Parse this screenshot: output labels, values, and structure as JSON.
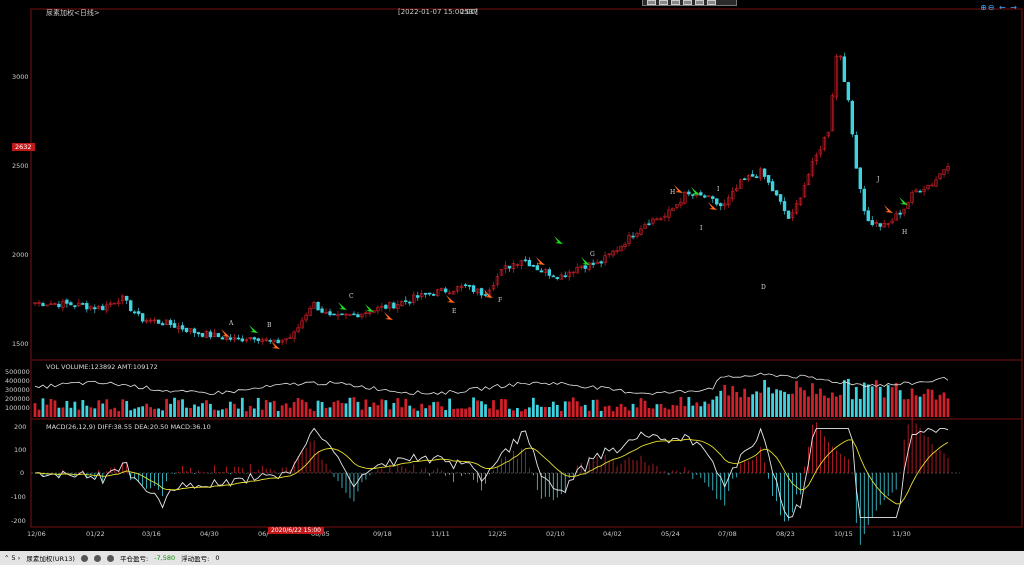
{
  "window": {
    "title": "尿素加权<日线>",
    "cursor_time": "[2022-01-07 15:00:00]",
    "cursor_value": "2537"
  },
  "toolbar": {
    "buttons": 6
  },
  "price_axis": {
    "labels": [
      "3000",
      "2500",
      "2000",
      "1500"
    ],
    "current_price": "2632"
  },
  "volume_panel": {
    "label": "VOL  VOLUME:123892 AMT:109172",
    "axis": [
      "500000",
      "400000",
      "300000",
      "200000",
      "100000"
    ]
  },
  "macd_panel": {
    "label": "MACD(26,12,9)   DIFF:38.55  DEA:20.50  MACD:36.10",
    "axis": [
      "200",
      "100",
      "0",
      "-100",
      "-200"
    ]
  },
  "date_axis": [
    "12/06",
    "01/22",
    "03/16",
    "04/30",
    "06/",
    "08/05",
    "09/18",
    "11/11",
    "12/25",
    "02/10",
    "04/02",
    "05/24",
    "07/08",
    "08/23",
    "10/15",
    "11/30"
  ],
  "date_highlight": "2020/6/22  15:00",
  "markers": [
    "A",
    "B",
    "C",
    "D",
    "E",
    "F",
    "G",
    "H",
    "I",
    "J",
    "H",
    "I"
  ],
  "status_bar": {
    "contract": "尿素加权(UR13)",
    "avg_profit_label": "平仓盈亏:",
    "avg_profit_value": "-7,580",
    "float_label": "浮动盈亏:",
    "float_value": "0"
  },
  "colors": {
    "up": "#d0202a",
    "down": "#3fd3e0",
    "ma": "#e8e8e8",
    "dea": "#e8e030",
    "green": "#1ee01e",
    "orange": "#ff6a1e"
  },
  "chart_data": {
    "type": "candlestick",
    "ylim": [
      1350,
      3200
    ],
    "close_anchors": [
      [
        0,
        1740
      ],
      [
        40,
        1730
      ],
      [
        70,
        1710
      ],
      [
        90,
        1770
      ],
      [
        110,
        1650
      ],
      [
        140,
        1620
      ],
      [
        170,
        1570
      ],
      [
        210,
        1530
      ],
      [
        230,
        1550
      ],
      [
        250,
        1510
      ],
      [
        270,
        1550
      ],
      [
        290,
        1740
      ],
      [
        310,
        1650
      ],
      [
        340,
        1680
      ],
      [
        370,
        1720
      ],
      [
        400,
        1770
      ],
      [
        420,
        1800
      ],
      [
        450,
        1830
      ],
      [
        470,
        1790
      ],
      [
        490,
        1930
      ],
      [
        510,
        1990
      ],
      [
        530,
        1920
      ],
      [
        550,
        1890
      ],
      [
        570,
        1950
      ],
      [
        590,
        1960
      ],
      [
        610,
        2050
      ],
      [
        640,
        2200
      ],
      [
        660,
        2230
      ],
      [
        680,
        2350
      ],
      [
        700,
        2340
      ],
      [
        720,
        2280
      ],
      [
        740,
        2430
      ],
      [
        760,
        2480
      ],
      [
        780,
        2300
      ],
      [
        790,
        2200
      ],
      [
        810,
        2480
      ],
      [
        830,
        2720
      ],
      [
        840,
        3220
      ],
      [
        850,
        2900
      ],
      [
        860,
        2480
      ],
      [
        870,
        2200
      ],
      [
        890,
        2170
      ],
      [
        910,
        2280
      ],
      [
        920,
        2370
      ],
      [
        940,
        2420
      ],
      [
        955,
        2530
      ]
    ]
  }
}
